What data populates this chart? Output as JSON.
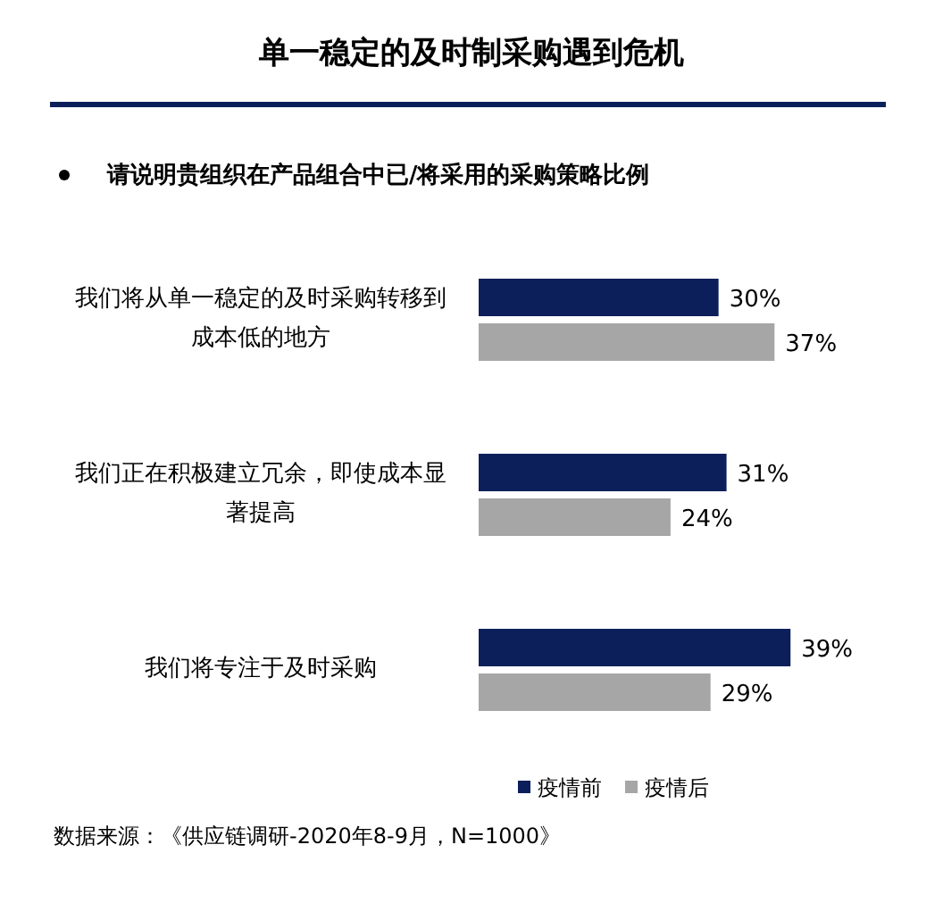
{
  "chart_data": {
    "type": "bar",
    "orientation": "horizontal",
    "title": "单一稳定的及时制采购遇到危机",
    "subtitle": "请说明贵组织在产品组合中已/将采用的采购策略比例",
    "categories": [
      "我们将从单一稳定的及时采购转移到成本低的地方",
      "我们正在积极建立冗余，即使成本显著提高",
      "我们将专注于及时采购"
    ],
    "series": [
      {
        "name": "疫情前",
        "color": "#0c1f5a",
        "values": [
          30,
          31,
          39
        ],
        "value_labels": [
          "30%",
          "31%",
          "39%"
        ]
      },
      {
        "name": "疫情后",
        "color": "#a6a6a6",
        "values": [
          37,
          24,
          29
        ],
        "value_labels": [
          "37%",
          "24%",
          "29%"
        ]
      }
    ],
    "legend": "bottom",
    "annotations": [
      "数据来源：《供应链调研-2020年8-9月，N=1000》"
    ]
  }
}
